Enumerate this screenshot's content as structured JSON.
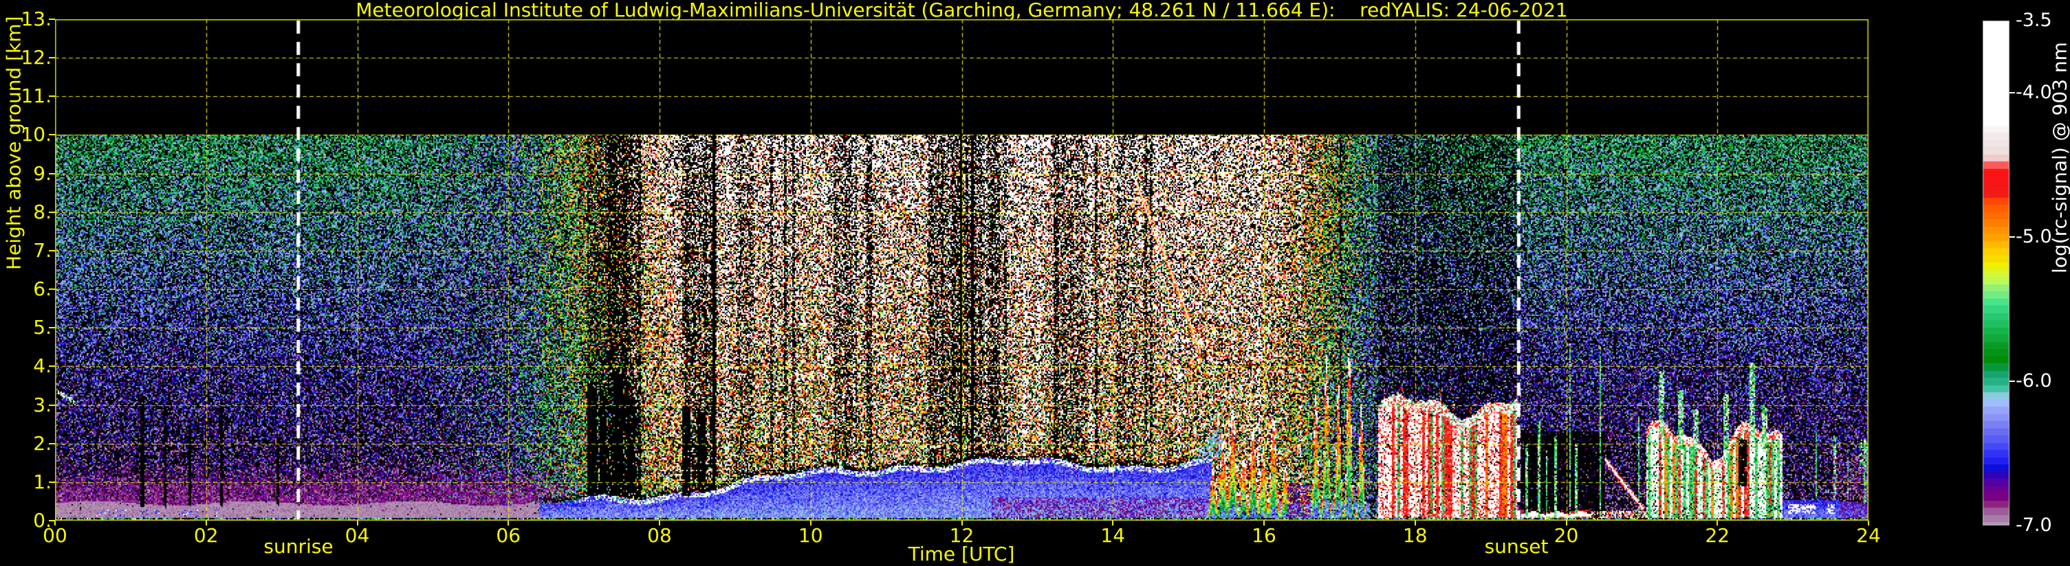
{
  "title": "Meteorological Institute of Ludwig-Maximilians-Universität (Garching, Germany; 48.261 N / 11.664 E):    redYALIS: 24-06-2021",
  "axes": {
    "x": {
      "label": "Time [UTC]",
      "min": 0,
      "max": 24,
      "tick_step_hours": 2,
      "ticks": [
        "00",
        "02",
        "04",
        "06",
        "08",
        "10",
        "12",
        "14",
        "16",
        "18",
        "20",
        "22",
        "24"
      ]
    },
    "y": {
      "label": "Height above ground [km]",
      "min": 0,
      "max": 13,
      "data_top_km": 10,
      "ticks": [
        "0.",
        "1.",
        "2.",
        "3.",
        "4.",
        "5.",
        "6.",
        "7.",
        "8.",
        "9.",
        "10.",
        "11.",
        "12.",
        "13."
      ]
    }
  },
  "colorbar": {
    "label": "log(rc-signal) @ 903 nm",
    "min": -7.0,
    "max": -3.5,
    "tick_labels": [
      "-3.5",
      "-4.0",
      "-5.0",
      "-6.0",
      "-7.0"
    ],
    "tick_values": [
      -3.5,
      -4.0,
      -5.0,
      -6.0,
      -7.0
    ],
    "marked_ticks": [
      -4.0,
      -5.0,
      -6.0
    ]
  },
  "annotations": {
    "sunrise": {
      "label": "sunrise",
      "x_hours": 3.22
    },
    "sunset": {
      "label": "sunset",
      "x_hours": 19.37
    }
  },
  "colors": {
    "axis_text": "#f8f800",
    "grid": "#e8e800",
    "spine": "#d8d800",
    "background": "#000000",
    "cbar_text": "#ffffff",
    "sun_line": "#ffffff"
  },
  "chart_data": {
    "type": "heatmap",
    "x_range_hours": [
      0,
      24
    ],
    "y_range_km": [
      0,
      13
    ],
    "data_extent_km": [
      0,
      10
    ],
    "value_range": [
      -7.0,
      -3.5
    ],
    "grid": "dashed yellow every 1 km / 2 h",
    "legend_position": "right colorbar",
    "colormap": [
      [
        -3.5,
        "#ffffff"
      ],
      [
        -4.22,
        "#ffffff"
      ],
      [
        -4.31,
        "#f0e6e6"
      ],
      [
        -4.41,
        "#efe0e0"
      ],
      [
        -4.46,
        "#f2c4c4"
      ],
      [
        -4.53,
        "#fd1414"
      ],
      [
        -4.69,
        "#f01818"
      ],
      [
        -4.76,
        "#ff5000"
      ],
      [
        -4.9,
        "#ff7e00"
      ],
      [
        -5.0,
        "#ffa300"
      ],
      [
        -5.1,
        "#ffce00"
      ],
      [
        -5.2,
        "#f0f000"
      ],
      [
        -5.28,
        "#ccfa46"
      ],
      [
        -5.36,
        "#8eef7e"
      ],
      [
        -5.45,
        "#46e48c"
      ],
      [
        -5.55,
        "#28c870"
      ],
      [
        -5.65,
        "#16b44c"
      ],
      [
        -5.75,
        "#089c26"
      ],
      [
        -5.85,
        "#008c0a"
      ],
      [
        -5.95,
        "#12a26e"
      ],
      [
        -6.05,
        "#3cc49c"
      ],
      [
        -6.11,
        "#a8ccfa"
      ],
      [
        -6.2,
        "#96a6f8"
      ],
      [
        -6.28,
        "#7f86f4"
      ],
      [
        -6.36,
        "#676af2"
      ],
      [
        -6.44,
        "#4a4cf6"
      ],
      [
        -6.52,
        "#2c2efa"
      ],
      [
        -6.58,
        "#1212e6"
      ],
      [
        -6.63,
        "#0a08c6"
      ],
      [
        -6.68,
        "#4e00a8"
      ],
      [
        -6.74,
        "#660096"
      ],
      [
        -6.8,
        "#7c0080"
      ],
      [
        -6.84,
        "#8a1a78"
      ],
      [
        -6.88,
        "#964890"
      ],
      [
        -6.92,
        "#a06aa0"
      ],
      [
        -6.96,
        "#ac86ac"
      ],
      [
        -7.0,
        "#b496b4"
      ]
    ],
    "features": {
      "base_noise": {
        "day_ramp": [
          4.6,
          2.0,
          18.6,
          1.8
        ],
        "red_ramp": [
          6.0,
          2.2,
          17.6,
          1.6
        ],
        "night_v0": -6.9,
        "night_vslope": 0.105,
        "night_sigma": 0.25,
        "night_pblack0": 0.62,
        "night_pblack_slope": 0.025,
        "day_v0": -6.35,
        "day_gain": 1.45,
        "day_hgain": 1.15,
        "day_sigma0": 0.45,
        "day_sigma_rf": 0.25,
        "day_pblack": 0.32
      },
      "dark_bands": [
        [
          7.05,
          7.75,
          0.5
        ],
        [
          8.3,
          8.75,
          0.45
        ],
        [
          9.0,
          9.25,
          0.25
        ],
        [
          10.3,
          10.6,
          0.35
        ],
        [
          11.55,
          12.5,
          0.4
        ],
        [
          13.3,
          13.65,
          0.3
        ],
        [
          14.05,
          14.3,
          0.25
        ]
      ],
      "black_streaks": [
        [
          1.15,
          0.025,
          0.35,
          3.2
        ],
        [
          1.45,
          0.02,
          0.35,
          3.0
        ],
        [
          1.78,
          0.02,
          0.4,
          2.6
        ],
        [
          2.2,
          0.025,
          0.35,
          3.1
        ],
        [
          2.95,
          0.02,
          0.4,
          2.2
        ],
        [
          7.1,
          0.06,
          0.65,
          3.6
        ],
        [
          7.25,
          0.05,
          0.7,
          3.4
        ],
        [
          7.45,
          0.07,
          0.65,
          3.8
        ],
        [
          7.62,
          0.05,
          0.7,
          3.2
        ],
        [
          8.35,
          0.06,
          0.65,
          3.0
        ],
        [
          8.55,
          0.05,
          0.7,
          2.8
        ],
        [
          18.92,
          0.05,
          0.0,
          2.6
        ],
        [
          22.32,
          0.06,
          0.0,
          2.1
        ]
      ],
      "morning_aerosol": {
        "t_fade0": 6.3,
        "t_end": 7.0,
        "solid_top": 0.45,
        "solid_v": -6.97,
        "band_top": 0.95,
        "band_v": -6.83,
        "haze_top": 1.6,
        "haze_v": -6.8
      },
      "surface_clumps": {
        "t0": 0.45,
        "t1": 2.25,
        "h0": 0.1,
        "h1": 0.3,
        "p": 0.3
      },
      "day_bl": {
        "t0": 6.4,
        "t1": 15.3,
        "top0": 0.35,
        "grow": 1.15,
        "grow_dur": 4.8,
        "v_base": -6.22,
        "v_depth": 0.3,
        "cloud_p": 0.55,
        "cloud_v": -3.75,
        "purple_t0": 12.4,
        "purple_p": 0.45,
        "purple_v": -6.8
      },
      "fan": {
        "t0": 14.55,
        "t1": 15.45,
        "rise": 2.6,
        "v": -6.12
      },
      "fallstreaks": {
        "slope_km_per_h": -5.5,
        "core_v": -3.7,
        "edge_v": -4.85,
        "streaks": [
          [
            14.3,
            8.8,
            1.8
          ],
          [
            14.42,
            8.3,
            2.2
          ],
          [
            14.55,
            7.6,
            2.5
          ],
          [
            14.68,
            6.9,
            2.6
          ],
          [
            14.82,
            6.2,
            1.9
          ]
        ]
      },
      "convection": {
        "t0": 15.22,
        "t1": 17.4,
        "w": 0.05,
        "w_tall": 0.038,
        "bumps": [
          [
            15.32,
            1.35
          ],
          [
            15.45,
            2.1
          ],
          [
            15.58,
            2.9
          ],
          [
            15.72,
            1.6
          ],
          [
            15.85,
            2.4
          ],
          [
            15.98,
            1.9
          ],
          [
            16.12,
            2.7
          ],
          [
            16.28,
            1.4
          ],
          [
            16.5,
            0.95
          ],
          [
            16.68,
            3.3
          ],
          [
            16.82,
            4.3
          ],
          [
            16.98,
            3.6
          ],
          [
            17.12,
            4.5
          ],
          [
            17.28,
            3.0
          ]
        ],
        "purple_low": [
          16.3,
          16.62,
          1.0
        ]
      },
      "storm1": {
        "t0": 17.5,
        "t1": 19.35,
        "ctop": 2.8,
        "amp1": 0.25,
        "f1": 4.1,
        "amp2": 0.12,
        "f2": 9.7,
        "white_era_end": 18.15,
        "white_v": -3.72,
        "red_v": -4.62,
        "orange_v": -4.9,
        "green_v": -5.55,
        "black_p": 0.06
      },
      "post_sunset": {
        "t0": 19.4,
        "t1": 20.5,
        "pblack": 0.93,
        "surf_t1": 20.3,
        "surf_h": 0.2,
        "crust_v": -4.55,
        "orange_surf_t1": 21.05
      },
      "green_lines": [
        [
          19.47,
          2.0
        ],
        [
          19.63,
          2.6
        ],
        [
          19.73,
          1.8
        ],
        [
          19.85,
          2.2
        ],
        [
          20.04,
          4.6
        ],
        [
          20.12,
          2.0
        ],
        [
          20.44,
          4.5
        ],
        [
          20.95,
          2.7
        ],
        [
          23.3,
          2.4
        ],
        [
          23.55,
          2.2
        ],
        [
          23.72,
          1.9
        ],
        [
          23.95,
          2.1
        ]
      ],
      "slope_streak": {
        "t0": 20.5,
        "t1": 21.02,
        "h0": 1.6,
        "h1": 0.28,
        "w": 0.1
      },
      "storm2": {
        "t0": 21.05,
        "t1": 22.85,
        "ctop": 1.95,
        "amp1": 0.4,
        "f1": 5.2,
        "amp2": 0.2,
        "f2": 11.0,
        "spikes": [
          [
            21.25,
            3.9
          ],
          [
            21.5,
            3.4
          ],
          [
            21.7,
            2.9
          ],
          [
            22.1,
            3.3
          ],
          [
            22.45,
            4.1
          ],
          [
            22.62,
            3.0
          ]
        ],
        "black_slot": [
          22.27,
          22.38,
          0.9,
          2.1
        ]
      },
      "late_blue": {
        "t0": 22.85,
        "blue_top": 0.52,
        "clump_t0": 22.9,
        "clump_t1": 23.55,
        "clump_h": [
          0.18,
          0.42
        ],
        "purple_t0": 23.5,
        "purple_top": 1.7
      },
      "corner_streak": {
        "t0": 0.03,
        "t1": 0.28,
        "h_top": 3.35,
        "slope": -1.2
      },
      "ground": {
        "h": 0.07,
        "pblack": 0.45
      }
    }
  }
}
